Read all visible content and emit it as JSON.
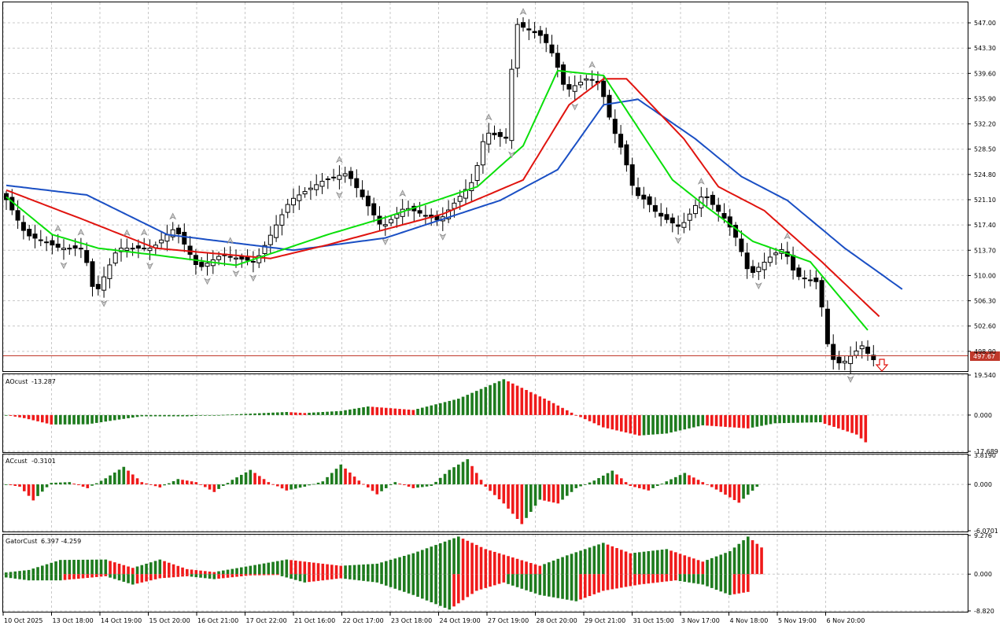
{
  "colors": {
    "background": "#ffffff",
    "grid": "#c8c8c8",
    "jaw": "#1a4fc4",
    "teeth": "#e0140f",
    "lips": "#0adf0a",
    "up_bar": "#1e7b1e",
    "down_bar": "#ef1a1a",
    "price_line": "#c0392b"
  },
  "icons": {
    "fractal_up": "fractal-up-icon",
    "fractal_down": "fractal-down-icon",
    "sell_signal": "sell-arrow-icon"
  },
  "chart_data": [
    {
      "name": "price",
      "type": "candlestick",
      "x_tick_labels": [
        "10 Oct 2025",
        "13 Oct 18:00",
        "14 Oct 19:00",
        "15 Oct 20:00",
        "16 Oct 21:00",
        "17 Oct 22:00",
        "21 Oct 16:00",
        "22 Oct 17:00",
        "23 Oct 18:00",
        "24 Oct 19:00",
        "27 Oct 19:00",
        "28 Oct 20:00",
        "29 Oct 21:00",
        "31 Oct 15:00",
        "3 Nov 17:00",
        "4 Nov 18:00",
        "5 Nov 19:00",
        "6 Nov 20:00"
      ],
      "y_tick_labels": [
        "547.00",
        "543.30",
        "539.60",
        "535.90",
        "532.20",
        "528.50",
        "524.80",
        "521.10",
        "517.40",
        "513.70",
        "510.00",
        "506.30",
        "502.60",
        "498.90"
      ],
      "ylim": [
        496.0,
        550.0
      ],
      "current_price": {
        "label": "497.67",
        "value": 497.67
      },
      "candle_count": 152,
      "candle_anchors": [
        [
          0,
          522
        ],
        [
          4,
          516
        ],
        [
          10,
          514
        ],
        [
          14,
          514
        ],
        [
          16,
          507
        ],
        [
          20,
          514
        ],
        [
          26,
          514
        ],
        [
          30,
          517
        ],
        [
          34,
          511
        ],
        [
          38,
          513
        ],
        [
          44,
          512
        ],
        [
          50,
          521
        ],
        [
          56,
          524
        ],
        [
          60,
          525
        ],
        [
          66,
          517
        ],
        [
          70,
          520
        ],
        [
          76,
          518
        ],
        [
          82,
          524
        ],
        [
          84,
          531
        ],
        [
          88,
          530
        ],
        [
          89,
          547
        ],
        [
          94,
          545
        ],
        [
          96,
          542
        ],
        [
          98,
          537
        ],
        [
          102,
          539
        ],
        [
          104,
          538
        ],
        [
          106,
          532
        ],
        [
          108,
          528
        ],
        [
          110,
          522
        ],
        [
          112,
          521
        ],
        [
          114,
          519
        ],
        [
          118,
          517
        ],
        [
          122,
          522
        ],
        [
          126,
          518
        ],
        [
          128,
          515
        ],
        [
          130,
          510
        ],
        [
          134,
          513
        ],
        [
          136,
          514
        ],
        [
          138,
          510
        ],
        [
          142,
          509
        ],
        [
          143,
          503
        ],
        [
          144,
          498
        ],
        [
          146,
          497
        ],
        [
          150,
          500
        ],
        [
          151,
          497.67
        ]
      ],
      "alligator": {
        "jaw": [
          [
            0,
            523.2
          ],
          [
            14,
            521.8
          ],
          [
            28,
            516.0
          ],
          [
            50,
            513.7
          ],
          [
            66,
            515.5
          ],
          [
            86,
            521.0
          ],
          [
            96,
            525.5
          ],
          [
            104,
            535.0
          ],
          [
            110,
            535.8
          ],
          [
            120,
            530.0
          ],
          [
            128,
            524.5
          ],
          [
            136,
            521.0
          ],
          [
            146,
            514.0
          ],
          [
            156,
            508.0
          ]
        ],
        "teeth": [
          [
            0,
            522.5
          ],
          [
            14,
            518.0
          ],
          [
            26,
            514.0
          ],
          [
            46,
            512.5
          ],
          [
            56,
            514.5
          ],
          [
            76,
            519.0
          ],
          [
            90,
            524.0
          ],
          [
            98,
            535.0
          ],
          [
            104,
            538.8
          ],
          [
            108,
            538.8
          ],
          [
            118,
            530.0
          ],
          [
            124,
            523.0
          ],
          [
            132,
            519.5
          ],
          [
            142,
            512.0
          ],
          [
            152,
            504.0
          ]
        ],
        "lips": [
          [
            0,
            521.5
          ],
          [
            8,
            516.0
          ],
          [
            16,
            514.0
          ],
          [
            26,
            513.0
          ],
          [
            40,
            511.5
          ],
          [
            56,
            516.0
          ],
          [
            66,
            518.5
          ],
          [
            82,
            523.0
          ],
          [
            90,
            529.0
          ],
          [
            96,
            540.0
          ],
          [
            104,
            539.3
          ],
          [
            116,
            524.0
          ],
          [
            122,
            520.0
          ],
          [
            130,
            515.0
          ],
          [
            140,
            512.0
          ],
          [
            150,
            502.0
          ]
        ]
      },
      "fractals_up_count": 22,
      "fractals_down_count": 20
    },
    {
      "name": "AOcust",
      "type": "bar",
      "label": "AOcust",
      "value_label": "-13.287",
      "y_tick_labels": [
        "19.540",
        "0.000",
        "-17.689"
      ],
      "ylim": [
        -17.689,
        19.54
      ],
      "anchors": [
        [
          0,
          0
        ],
        [
          4,
          -1.5
        ],
        [
          10,
          -4.6
        ],
        [
          18,
          -4.5
        ],
        [
          24,
          -2.5
        ],
        [
          30,
          -0.6
        ],
        [
          40,
          -0.6
        ],
        [
          50,
          0.3
        ],
        [
          62,
          1.5
        ],
        [
          66,
          1.0
        ],
        [
          74,
          2.0
        ],
        [
          80,
          4.2
        ],
        [
          90,
          2.5
        ],
        [
          100,
          8.0
        ],
        [
          110,
          17.5
        ],
        [
          120,
          7.0
        ],
        [
          126,
          0.0
        ],
        [
          132,
          -6.0
        ],
        [
          140,
          -10.0
        ],
        [
          146,
          -9.0
        ],
        [
          154,
          -5.0
        ],
        [
          164,
          -6.5
        ],
        [
          170,
          -4.0
        ],
        [
          180,
          -3.5
        ],
        [
          188,
          -9.5
        ],
        [
          190,
          -13.287
        ]
      ]
    },
    {
      "name": "ACcust",
      "type": "bar",
      "label": "ACcust",
      "value_label": "-0.3101",
      "y_tick_labels": [
        "3.8190",
        "0.000",
        "-6.0701"
      ],
      "ylim": [
        -6.0701,
        3.819
      ],
      "anchors": [
        [
          0,
          0
        ],
        [
          3,
          -0.3
        ],
        [
          6,
          -2.1
        ],
        [
          10,
          0.2
        ],
        [
          14,
          0.3
        ],
        [
          18,
          -0.5
        ],
        [
          22,
          0.8
        ],
        [
          26,
          2.3
        ],
        [
          30,
          0.3
        ],
        [
          34,
          -0.4
        ],
        [
          38,
          0.7
        ],
        [
          42,
          0.3
        ],
        [
          46,
          -1.0
        ],
        [
          50,
          0.6
        ],
        [
          54,
          1.9
        ],
        [
          58,
          0.3
        ],
        [
          62,
          -0.8
        ],
        [
          66,
          -0.3
        ],
        [
          70,
          0.4
        ],
        [
          74,
          2.6
        ],
        [
          78,
          0.5
        ],
        [
          82,
          -1.3
        ],
        [
          86,
          0.3
        ],
        [
          90,
          -0.5
        ],
        [
          94,
          -0.2
        ],
        [
          98,
          1.9
        ],
        [
          102,
          3.3
        ],
        [
          106,
          -0.3
        ],
        [
          110,
          -2.5
        ],
        [
          114,
          -5.2
        ],
        [
          118,
          -2.0
        ],
        [
          122,
          -2.5
        ],
        [
          126,
          -0.5
        ],
        [
          130,
          0.5
        ],
        [
          134,
          1.8
        ],
        [
          138,
          -0.2
        ],
        [
          142,
          -0.8
        ],
        [
          146,
          0.4
        ],
        [
          150,
          1.5
        ],
        [
          154,
          0.3
        ],
        [
          158,
          -1.0
        ],
        [
          162,
          -2.4
        ],
        [
          166,
          -0.31
        ]
      ]
    },
    {
      "name": "GatorCust",
      "type": "bar",
      "label": "GatorCust",
      "value_label": "6.397 -4.259",
      "y_tick_labels": [
        "9.276",
        "0.000",
        "-8.820"
      ],
      "ylim": [
        -8.82,
        9.276
      ],
      "upper_anchors": [
        [
          0,
          0.4
        ],
        [
          5,
          1.0
        ],
        [
          12,
          3.4
        ],
        [
          22,
          3.5
        ],
        [
          28,
          1.5
        ],
        [
          34,
          3.5
        ],
        [
          40,
          1.2
        ],
        [
          46,
          0.5
        ],
        [
          54,
          2.0
        ],
        [
          62,
          3.5
        ],
        [
          66,
          3.0
        ],
        [
          74,
          2.0
        ],
        [
          82,
          2.5
        ],
        [
          90,
          5.0
        ],
        [
          100,
          9.0
        ],
        [
          106,
          6.0
        ],
        [
          112,
          4.0
        ],
        [
          118,
          2.0
        ],
        [
          124,
          4.5
        ],
        [
          132,
          7.5
        ],
        [
          138,
          5.0
        ],
        [
          146,
          6.0
        ],
        [
          154,
          3.0
        ],
        [
          160,
          5.5
        ],
        [
          164,
          9.0
        ],
        [
          167,
          6.397
        ]
      ],
      "lower_anchors": [
        [
          0,
          -0.8
        ],
        [
          5,
          -1.5
        ],
        [
          12,
          -1.5
        ],
        [
          22,
          -0.5
        ],
        [
          28,
          -2.5
        ],
        [
          34,
          -1.0
        ],
        [
          40,
          -0.5
        ],
        [
          46,
          -1.2
        ],
        [
          54,
          -0.3
        ],
        [
          60,
          -0.2
        ],
        [
          66,
          -2.0
        ],
        [
          74,
          -1.0
        ],
        [
          82,
          -2.0
        ],
        [
          90,
          -5.0
        ],
        [
          98,
          -8.5
        ],
        [
          104,
          -4.0
        ],
        [
          110,
          -2.0
        ],
        [
          118,
          -5.0
        ],
        [
          126,
          -6.5
        ],
        [
          132,
          -4.0
        ],
        [
          140,
          -2.5
        ],
        [
          148,
          -1.5
        ],
        [
          154,
          -2.5
        ],
        [
          160,
          -5.0
        ],
        [
          164,
          -4.259
        ]
      ]
    }
  ]
}
